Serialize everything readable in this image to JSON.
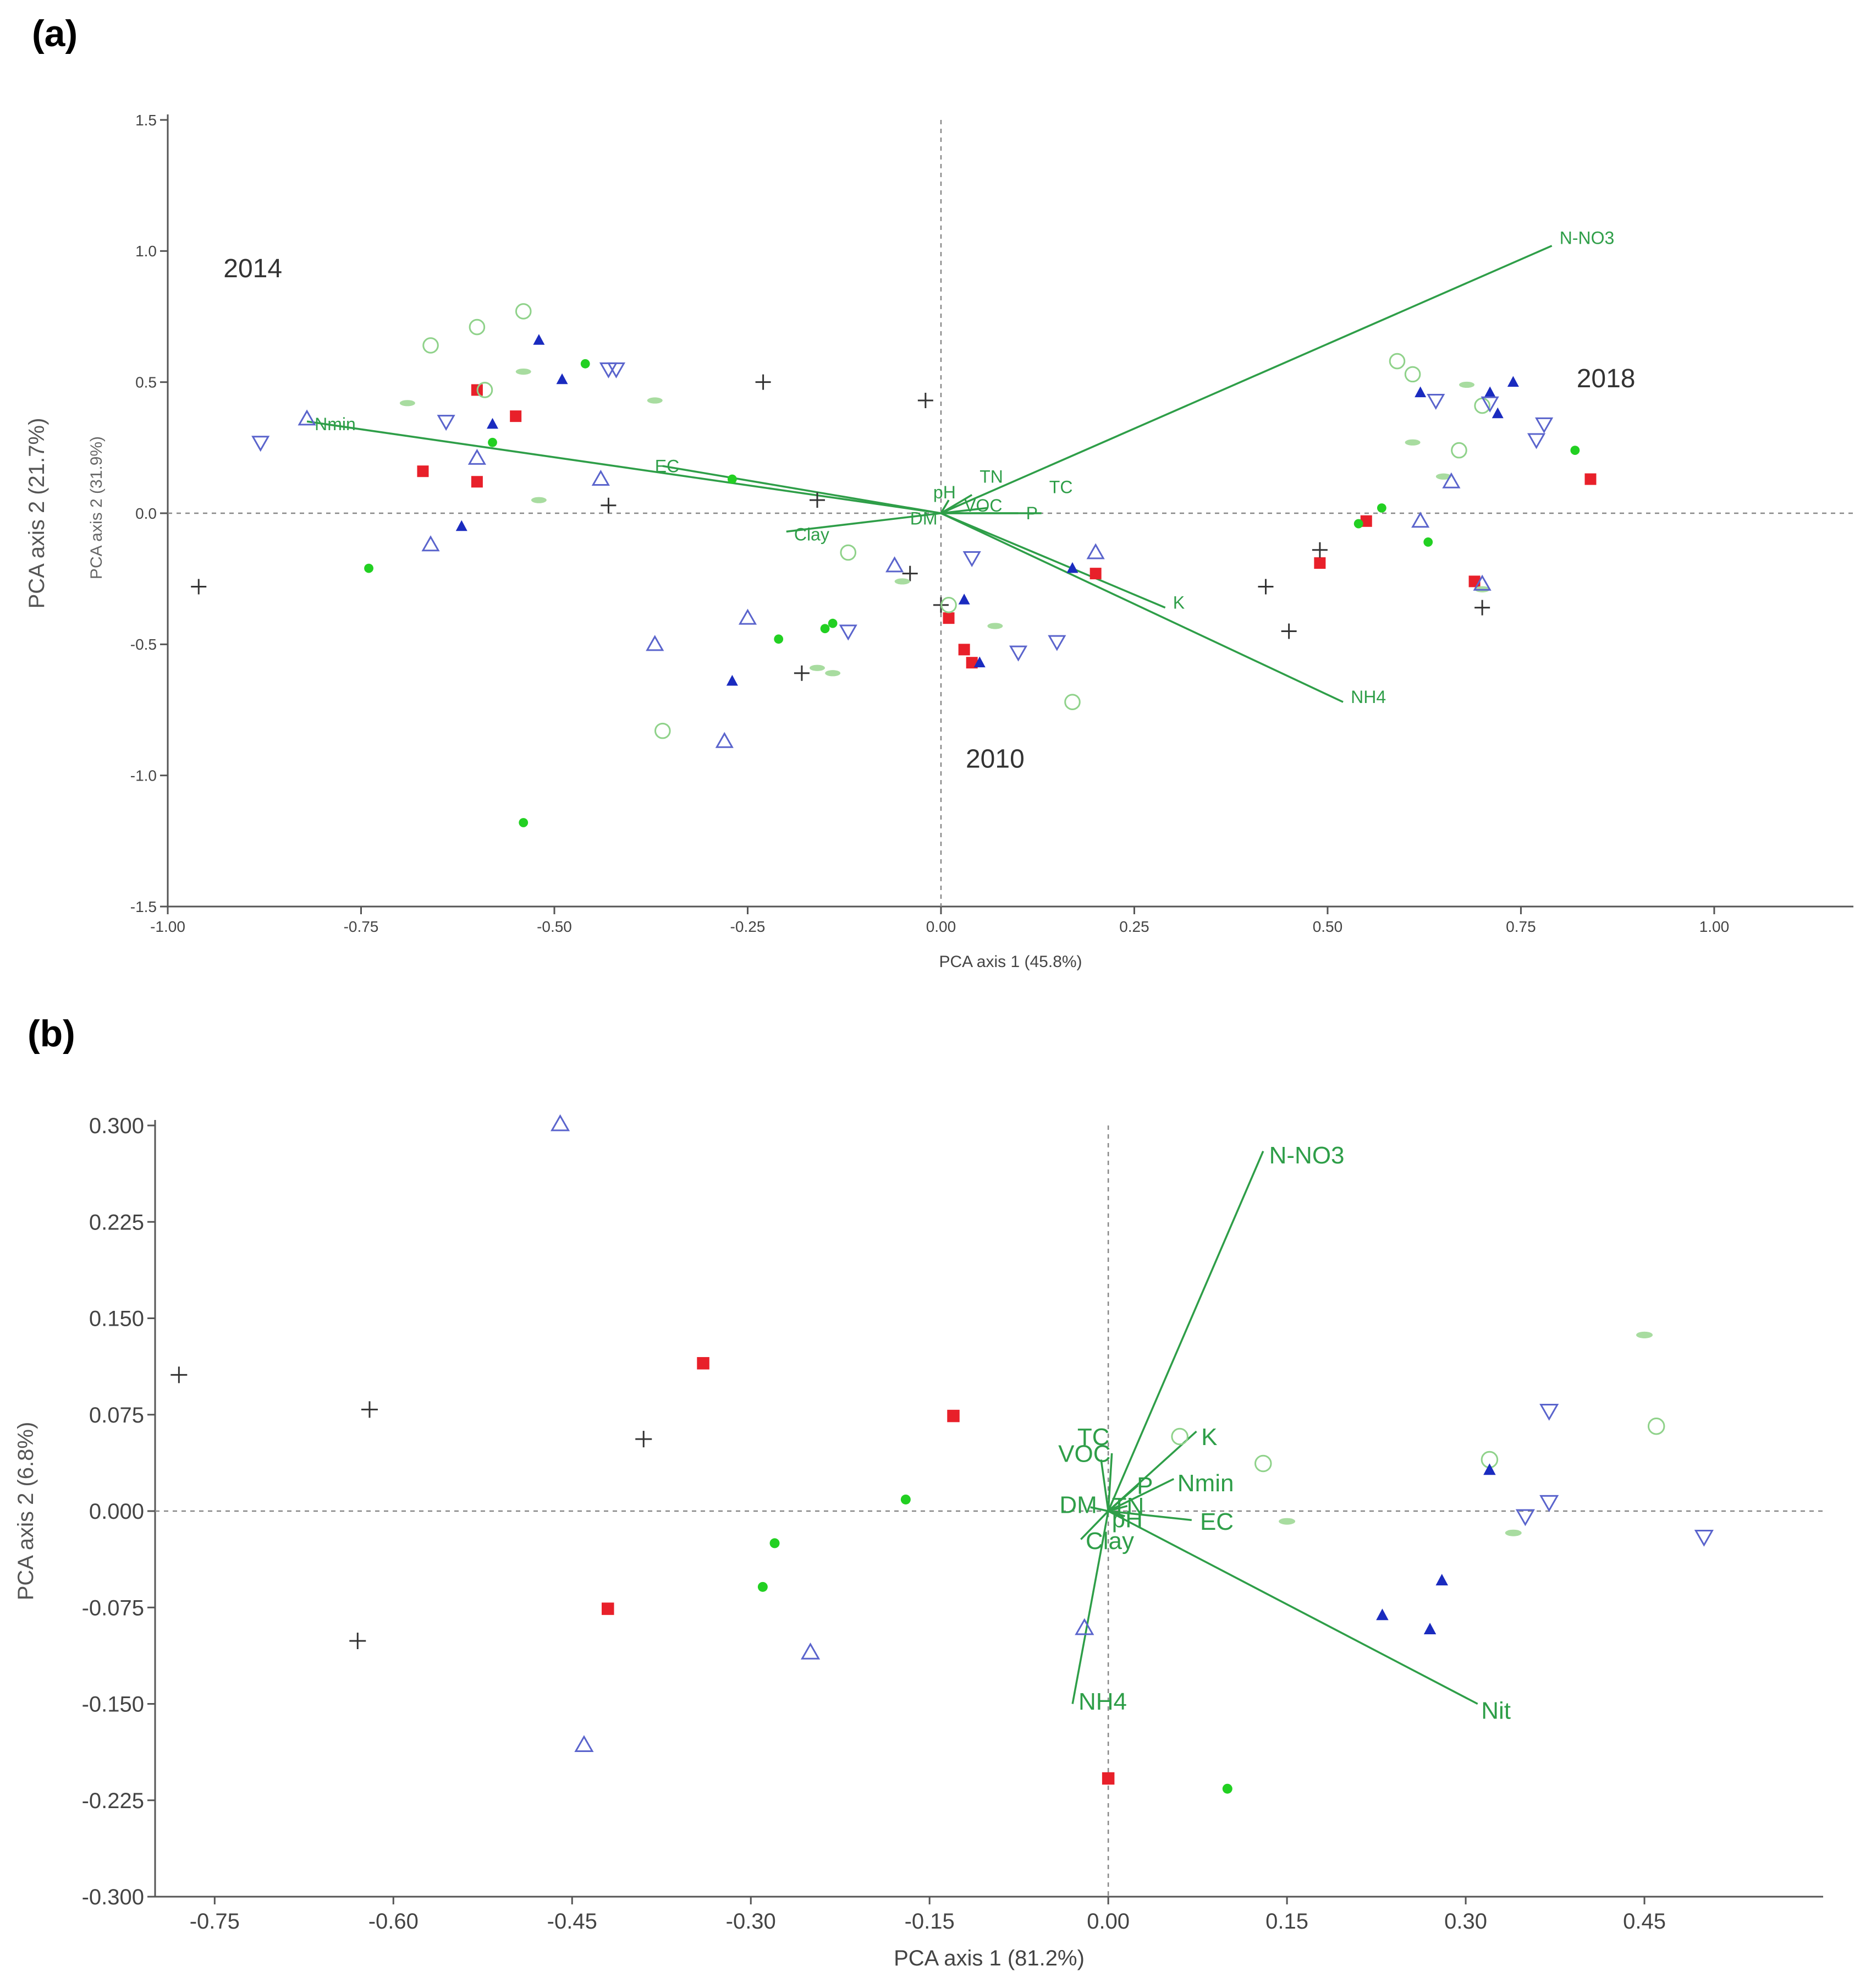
{
  "panels": [
    {
      "label": "(a)"
    },
    {
      "label": "(b)"
    }
  ],
  "colors": {
    "vector": "#2e9e48",
    "vector_text": "#2e9e48",
    "axis": "#555555",
    "ref_line": "#888888",
    "red_square": "#e8202a",
    "black_plus": "#333333",
    "green_dot": "#22d022",
    "light_green_circle": "#8fd28a",
    "light_green_dash": "#a8dca0",
    "blue_triangle": "#1a2bbf",
    "blue_open": "#5a64cc"
  },
  "chart_data": [
    {
      "type": "scatter",
      "title": "(a)",
      "xlabel": "PCA axis 1 (45.8%)",
      "ylabel": "PCA axis 2 (21.7%)",
      "ylabel2": "PCA axis 2 (31.9%)",
      "xlim": [
        -1.0,
        1.18
      ],
      "ylim": [
        -1.5,
        1.5
      ],
      "xticks": [
        -1.0,
        -0.75,
        -0.5,
        -0.25,
        0.0,
        0.25,
        0.5,
        0.75,
        1.0
      ],
      "xtick_labels": [
        "-1.00",
        "-0.75",
        "-0.50",
        "-0.25",
        "0.00",
        "0.25",
        "0.50",
        "0.75",
        "1.00"
      ],
      "yticks": [
        -1.5,
        -1.0,
        -0.5,
        0.0,
        0.5,
        1.0,
        1.5
      ],
      "ytick_labels": [
        "-1.5",
        "-1.0",
        "-0.5",
        "0.0",
        "0.5",
        "1.0",
        "1.5"
      ],
      "annotations": [
        {
          "text": "2014",
          "x": -0.89,
          "y": 0.9
        },
        {
          "text": "2018",
          "x": 0.86,
          "y": 0.48
        },
        {
          "text": "2010",
          "x": 0.07,
          "y": -0.97
        }
      ],
      "vectors": [
        {
          "name": "N-NO3",
          "x": 0.79,
          "y": 1.02,
          "lx": 0.8,
          "ly": 1.05
        },
        {
          "name": "NH4",
          "x": 0.52,
          "y": -0.72,
          "lx": 0.53,
          "ly": -0.7
        },
        {
          "name": "K",
          "x": 0.29,
          "y": -0.36,
          "lx": 0.3,
          "ly": -0.34
        },
        {
          "name": "TC",
          "x": 0.13,
          "y": 0.0,
          "lx": 0.14,
          "ly": 0.1
        },
        {
          "name": "P",
          "x": 0.1,
          "y": 0.0,
          "lx": 0.11,
          "ly": 0.0
        },
        {
          "name": "TN",
          "x": 0.04,
          "y": 0.07,
          "lx": 0.05,
          "ly": 0.14
        },
        {
          "name": "pH",
          "x": 0.01,
          "y": 0.05,
          "lx": -0.01,
          "ly": 0.08
        },
        {
          "name": "VOC",
          "x": 0.06,
          "y": 0.02,
          "lx": 0.03,
          "ly": 0.03
        },
        {
          "name": "DM",
          "x": -0.01,
          "y": 0.0,
          "lx": -0.04,
          "ly": -0.02
        },
        {
          "name": "Clay",
          "x": -0.2,
          "y": -0.07,
          "lx": -0.19,
          "ly": -0.08
        },
        {
          "name": "EC",
          "x": -0.36,
          "y": 0.18,
          "lx": -0.37,
          "ly": 0.18
        },
        {
          "name": "Nmin",
          "x": -0.82,
          "y": 0.35,
          "lx": -0.81,
          "ly": 0.34
        }
      ],
      "series": [
        {
          "name": "red square",
          "marker": "square",
          "x": [
            -0.6,
            -0.55,
            -0.67,
            -0.6,
            0.01,
            0.03,
            0.04,
            0.2,
            0.49,
            0.55,
            0.69,
            0.84
          ],
          "y": [
            0.47,
            0.37,
            0.16,
            0.12,
            -0.4,
            -0.52,
            -0.57,
            -0.23,
            -0.19,
            -0.03,
            -0.26,
            0.13
          ]
        },
        {
          "name": "black plus",
          "marker": "plus",
          "x": [
            -0.96,
            -0.43,
            -0.23,
            -0.16,
            -0.18,
            -0.02,
            -0.04,
            -0.0,
            0.42,
            0.45,
            0.49,
            0.7
          ],
          "y": [
            -0.28,
            0.03,
            0.5,
            0.05,
            -0.61,
            0.43,
            -0.23,
            -0.35,
            -0.28,
            -0.45,
            -0.14,
            -0.36
          ]
        },
        {
          "name": "green dot",
          "marker": "dot",
          "x": [
            -0.74,
            -0.58,
            -0.46,
            -0.27,
            -0.21,
            -0.15,
            -0.14,
            -0.54,
            0.54,
            0.57,
            0.63,
            0.82
          ],
          "y": [
            -0.21,
            0.27,
            0.57,
            0.13,
            -0.48,
            -0.44,
            -0.42,
            -1.18,
            -0.04,
            0.02,
            -0.11,
            0.24
          ]
        },
        {
          "name": "light green circle",
          "marker": "circle",
          "x": [
            -0.66,
            -0.6,
            -0.54,
            -0.59,
            -0.12,
            0.01,
            0.17,
            -0.36,
            0.59,
            0.61,
            0.67,
            0.7
          ],
          "y": [
            0.64,
            0.71,
            0.77,
            0.47,
            -0.15,
            -0.35,
            -0.72,
            -0.83,
            0.58,
            0.53,
            0.24,
            0.41
          ]
        },
        {
          "name": "light green dash",
          "marker": "dash",
          "x": [
            -0.69,
            -0.54,
            -0.52,
            -0.37,
            -0.05,
            0.07,
            -0.16,
            -0.14,
            0.61,
            0.65,
            0.68,
            0.7
          ],
          "y": [
            0.42,
            0.54,
            0.05,
            0.43,
            -0.26,
            -0.43,
            -0.59,
            -0.61,
            0.27,
            0.14,
            0.49,
            -0.29
          ]
        },
        {
          "name": "blue filled triangle",
          "marker": "tri-filled",
          "x": [
            -0.52,
            -0.49,
            -0.58,
            -0.62,
            -0.27,
            0.03,
            0.05,
            0.17,
            0.62,
            0.71,
            0.72,
            0.74
          ],
          "y": [
            0.66,
            0.51,
            0.34,
            -0.05,
            -0.64,
            -0.33,
            -0.57,
            -0.21,
            0.46,
            0.46,
            0.38,
            0.5
          ]
        },
        {
          "name": "blue open triangle",
          "marker": "tri-up",
          "x": [
            -0.82,
            -0.6,
            -0.44,
            -0.66,
            -0.37,
            -0.28,
            -0.25,
            -0.06,
            0.2,
            0.62,
            0.66,
            0.7
          ],
          "y": [
            0.36,
            0.21,
            0.13,
            -0.12,
            -0.5,
            -0.87,
            -0.4,
            -0.2,
            -0.15,
            -0.03,
            0.12,
            -0.27
          ]
        },
        {
          "name": "blue inverted triangle",
          "marker": "tri-down",
          "x": [
            -0.88,
            -0.64,
            -0.43,
            -0.42,
            -0.12,
            0.04,
            0.1,
            0.15,
            0.64,
            0.71,
            0.77,
            0.78
          ],
          "y": [
            0.27,
            0.35,
            0.55,
            0.55,
            -0.45,
            -0.17,
            -0.53,
            -0.49,
            0.43,
            0.42,
            0.28,
            0.34
          ]
        }
      ]
    },
    {
      "type": "scatter",
      "title": "(b)",
      "xlabel": "PCA axis 1 (81.2%)",
      "ylabel": "PCA axis 2 (6.8%)",
      "xlim": [
        -0.8,
        0.6
      ],
      "ylim": [
        -0.3,
        0.3
      ],
      "xticks": [
        -0.75,
        -0.6,
        -0.45,
        -0.3,
        -0.15,
        0.0,
        0.15,
        0.3,
        0.45
      ],
      "xtick_labels": [
        "-0.75",
        "-0.60",
        "-0.45",
        "-0.30",
        "-0.15",
        "0.00",
        "0.15",
        "0.30",
        "0.45"
      ],
      "yticks": [
        -0.3,
        -0.225,
        -0.15,
        -0.075,
        0.0,
        0.075,
        0.15,
        0.225,
        0.3
      ],
      "ytick_labels": [
        "-0.300",
        "-0.225",
        "-0.150",
        "-0.075",
        "0.000",
        "0.075",
        "0.150",
        "0.225",
        "0.300"
      ],
      "vectors": [
        {
          "name": "N-NO3",
          "x": 0.13,
          "y": 0.28,
          "lx": 0.135,
          "ly": 0.277
        },
        {
          "name": "Nit",
          "x": 0.31,
          "y": -0.15,
          "lx": 0.313,
          "ly": -0.155
        },
        {
          "name": "NH4",
          "x": -0.03,
          "y": -0.15,
          "lx": -0.025,
          "ly": -0.148
        },
        {
          "name": "K",
          "x": 0.074,
          "y": 0.062,
          "lx": 0.078,
          "ly": 0.058
        },
        {
          "name": "Nmin",
          "x": 0.055,
          "y": 0.025,
          "lx": 0.058,
          "ly": 0.022
        },
        {
          "name": "P",
          "x": 0.025,
          "y": 0.02,
          "lx": 0.024,
          "ly": 0.02
        },
        {
          "name": "EC",
          "x": 0.07,
          "y": -0.007,
          "lx": 0.077,
          "ly": -0.008
        },
        {
          "name": "TC",
          "x": 0.003,
          "y": 0.045,
          "lx": -0.026,
          "ly": 0.058
        },
        {
          "name": "VOC",
          "x": -0.006,
          "y": 0.04,
          "lx": -0.042,
          "ly": 0.045
        },
        {
          "name": "DM",
          "x": -0.015,
          "y": 0.003,
          "lx": -0.041,
          "ly": 0.005
        },
        {
          "name": "TN",
          "x": 0.016,
          "y": 0.004,
          "lx": 0.003,
          "ly": 0.004
        },
        {
          "name": "pH",
          "x": 0.014,
          "y": -0.004,
          "lx": 0.003,
          "ly": -0.006
        },
        {
          "name": "Clay",
          "x": -0.023,
          "y": -0.022,
          "lx": -0.019,
          "ly": -0.023
        }
      ],
      "series": [
        {
          "name": "black plus",
          "marker": "plus",
          "x": [
            -0.78,
            -0.62,
            -0.39,
            -0.63
          ],
          "y": [
            0.106,
            0.079,
            0.056,
            -0.101
          ]
        },
        {
          "name": "red square",
          "marker": "square",
          "x": [
            -0.34,
            -0.42,
            -0.13,
            0.0
          ],
          "y": [
            0.115,
            -0.076,
            0.074,
            -0.208
          ]
        },
        {
          "name": "green dot",
          "marker": "dot",
          "x": [
            -0.17,
            -0.28,
            -0.29,
            0.1
          ],
          "y": [
            0.009,
            -0.025,
            -0.059,
            -0.216
          ]
        },
        {
          "name": "blue open triangle",
          "marker": "tri-up",
          "x": [
            -0.46,
            -0.25,
            -0.44,
            -0.02
          ],
          "y": [
            0.301,
            -0.11,
            -0.182,
            -0.091
          ]
        },
        {
          "name": "light green circle",
          "marker": "circle",
          "x": [
            0.06,
            0.13,
            0.32,
            0.46
          ],
          "y": [
            0.058,
            0.037,
            0.04,
            0.066
          ]
        },
        {
          "name": "light green dash",
          "marker": "dash",
          "x": [
            0.15,
            0.34,
            0.45,
            0.45
          ],
          "y": [
            -0.008,
            -0.017,
            0.137,
            0.137
          ]
        },
        {
          "name": "blue filled triangle",
          "marker": "tri-filled",
          "x": [
            0.32,
            0.28,
            0.27,
            0.23
          ],
          "y": [
            0.032,
            -0.054,
            -0.092,
            -0.081
          ]
        },
        {
          "name": "blue inverted triangle",
          "marker": "tri-down",
          "x": [
            0.37,
            0.37,
            0.35,
            0.5
          ],
          "y": [
            0.078,
            0.007,
            -0.004,
            -0.02
          ]
        }
      ]
    }
  ]
}
